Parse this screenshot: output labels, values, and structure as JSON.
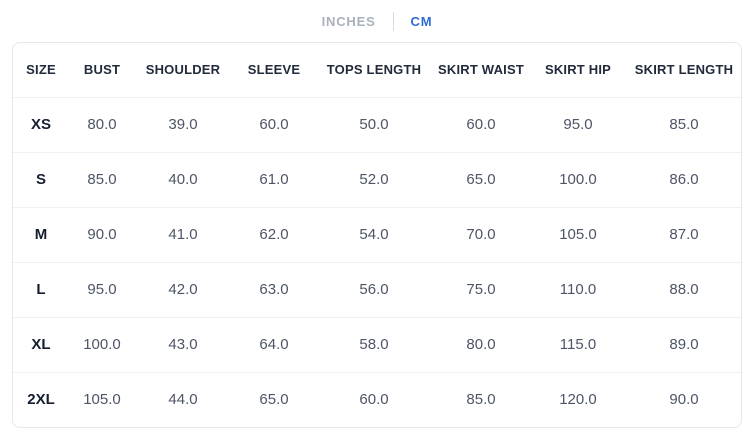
{
  "tabs": {
    "inches_label": "INCHES",
    "cm_label": "CM",
    "active": "CM"
  },
  "size_chart": {
    "columns": [
      "SIZE",
      "BUST",
      "SHOULDER",
      "SLEEVE",
      "TOPS LENGTH",
      "SKIRT WAIST",
      "SKIRT HIP",
      "SKIRT LENGTH"
    ],
    "rows": [
      {
        "size": "XS",
        "values": [
          "80.0",
          "39.0",
          "60.0",
          "50.0",
          "60.0",
          "95.0",
          "85.0"
        ]
      },
      {
        "size": "S",
        "values": [
          "85.0",
          "40.0",
          "61.0",
          "52.0",
          "65.0",
          "100.0",
          "86.0"
        ]
      },
      {
        "size": "M",
        "values": [
          "90.0",
          "41.0",
          "62.0",
          "54.0",
          "70.0",
          "105.0",
          "87.0"
        ]
      },
      {
        "size": "L",
        "values": [
          "95.0",
          "42.0",
          "63.0",
          "56.0",
          "75.0",
          "110.0",
          "88.0"
        ]
      },
      {
        "size": "XL",
        "values": [
          "100.0",
          "43.0",
          "64.0",
          "58.0",
          "80.0",
          "115.0",
          "89.0"
        ]
      },
      {
        "size": "2XL",
        "values": [
          "105.0",
          "44.0",
          "65.0",
          "60.0",
          "85.0",
          "120.0",
          "90.0"
        ]
      }
    ]
  },
  "colors": {
    "active_tab": "#2e6bd6",
    "inactive_tab": "#a9b1bc",
    "header_text": "#212b3b",
    "cell_text": "#4d5566",
    "size_text": "#161f30",
    "card_border": "#e6e8ec",
    "row_divider": "#eef0f3",
    "background": "#ffffff"
  }
}
